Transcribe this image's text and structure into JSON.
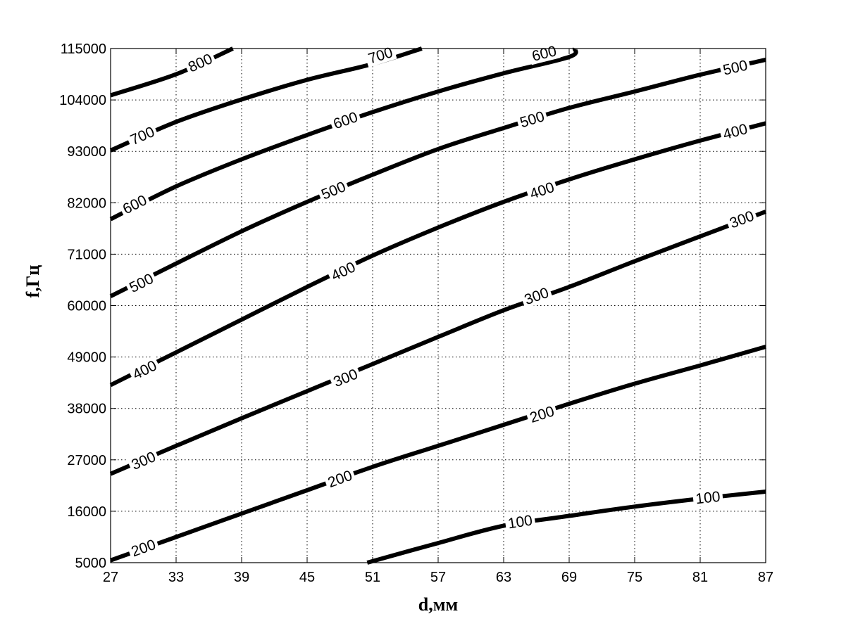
{
  "chart_data": {
    "type": "contour",
    "title": "",
    "xlabel": "d,мм",
    "ylabel": "f,Гц",
    "xlim": [
      27,
      87
    ],
    "ylim": [
      5000,
      115000
    ],
    "grid": true,
    "x_ticks": [
      "27",
      "33",
      "39",
      "45",
      "51",
      "57",
      "63",
      "69",
      "75",
      "81",
      "87"
    ],
    "y_ticks": [
      "5000",
      "16000",
      "27000",
      "38000",
      "49000",
      "60000",
      "71000",
      "82000",
      "93000",
      "104000",
      "115000"
    ],
    "contours": [
      {
        "level": "100",
        "points": [
          [
            50.5,
            5000
          ],
          [
            57,
            9200
          ],
          [
            63,
            12900
          ],
          [
            69,
            15000
          ],
          [
            75,
            17000
          ],
          [
            81,
            18700
          ],
          [
            87,
            20200
          ]
        ],
        "labels": [
          [
            64.5,
            13800
          ],
          [
            81.7,
            19000
          ]
        ]
      },
      {
        "level": "200",
        "points": [
          [
            27,
            5500
          ],
          [
            33,
            10500
          ],
          [
            39,
            15500
          ],
          [
            45,
            20500
          ],
          [
            51,
            25500
          ],
          [
            57,
            30000
          ],
          [
            63,
            34500
          ],
          [
            69,
            39000
          ],
          [
            75,
            43300
          ],
          [
            81,
            47200
          ],
          [
            87,
            51200
          ]
        ],
        "labels": [
          [
            30,
            8200
          ],
          [
            48,
            23000
          ],
          [
            66.5,
            36800
          ]
        ]
      },
      {
        "level": "300",
        "points": [
          [
            27,
            24000
          ],
          [
            33,
            30000
          ],
          [
            39,
            35900
          ],
          [
            45,
            41700
          ],
          [
            51,
            47500
          ],
          [
            57,
            53300
          ],
          [
            63,
            59000
          ],
          [
            69,
            64000
          ],
          [
            75,
            69500
          ],
          [
            81,
            74800
          ],
          [
            87,
            80100
          ]
        ],
        "labels": [
          [
            30,
            26900
          ],
          [
            48.5,
            44600
          ],
          [
            66,
            62100
          ],
          [
            84.8,
            78500
          ]
        ]
      },
      {
        "level": "400",
        "points": [
          [
            27,
            43000
          ],
          [
            33,
            50000
          ],
          [
            39,
            57000
          ],
          [
            45,
            64000
          ],
          [
            51,
            70700
          ],
          [
            57,
            76700
          ],
          [
            63,
            82200
          ],
          [
            69,
            87000
          ],
          [
            75,
            91300
          ],
          [
            81,
            95300
          ],
          [
            87,
            99000
          ]
        ],
        "labels": [
          [
            30.1,
            46300
          ],
          [
            48.3,
            67400
          ],
          [
            66.5,
            84700
          ],
          [
            84.2,
            97300
          ]
        ]
      },
      {
        "level": "500",
        "points": [
          [
            27,
            62000
          ],
          [
            33,
            69000
          ],
          [
            39,
            75900
          ],
          [
            45,
            82200
          ],
          [
            51,
            88000
          ],
          [
            57,
            93500
          ],
          [
            63,
            98000
          ],
          [
            69,
            102300
          ],
          [
            75,
            105800
          ],
          [
            81,
            109400
          ],
          [
            87,
            112600
          ]
        ],
        "labels": [
          [
            29.8,
            64900
          ],
          [
            47.4,
            84700
          ],
          [
            65.6,
            99900
          ],
          [
            84.2,
            111000
          ]
        ]
      },
      {
        "level": "600",
        "points": [
          [
            27,
            78500
          ],
          [
            33,
            85500
          ],
          [
            39,
            91300
          ],
          [
            45,
            96500
          ],
          [
            51,
            101400
          ],
          [
            57,
            105800
          ],
          [
            63,
            109700
          ],
          [
            69,
            113200
          ],
          [
            69.5,
            115000
          ]
        ],
        "labels": [
          [
            29.2,
            81700
          ],
          [
            48.5,
            99700
          ],
          [
            66.7,
            114000
          ]
        ]
      },
      {
        "level": "700",
        "points": [
          [
            27,
            93200
          ],
          [
            33,
            99300
          ],
          [
            39,
            104100
          ],
          [
            45,
            108300
          ],
          [
            51,
            111700
          ],
          [
            55.5,
            115000
          ]
        ],
        "labels": [
          [
            29.9,
            96400
          ],
          [
            51.7,
            113600
          ]
        ]
      },
      {
        "level": "800",
        "points": [
          [
            27,
            105000
          ],
          [
            33,
            109500
          ],
          [
            38.2,
            115000
          ]
        ],
        "labels": [
          [
            35.2,
            112000
          ]
        ]
      }
    ]
  }
}
